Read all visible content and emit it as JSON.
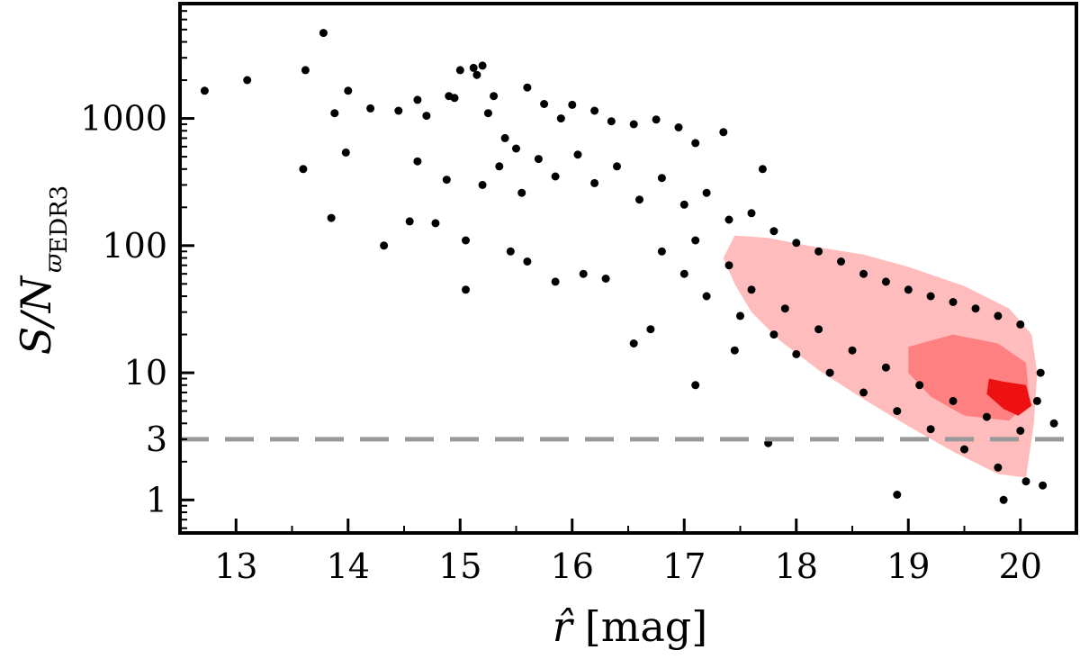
{
  "chart_data": {
    "type": "scatter",
    "title": "",
    "xlabel": "r̂ [mag]",
    "xlabel_parts": {
      "symbol": "r̂",
      "unit": "[mag]"
    },
    "ylabel": "S/N ϖ EDR3",
    "ylabel_parts": {
      "main": "S/N",
      "subscript_symbol": "ϖ",
      "subscript_text": "EDR3"
    },
    "xlim": [
      12.5,
      20.5
    ],
    "ylim": [
      0.55,
      8000
    ],
    "yscale": "log",
    "grid": false,
    "x_ticks": [
      "13",
      "14",
      "15",
      "16",
      "17",
      "18",
      "19",
      "20"
    ],
    "y_ticks": [
      "1",
      "3",
      "10",
      "100",
      "1000"
    ],
    "y_tick_values": [
      1,
      3,
      10,
      100,
      1000
    ],
    "reference_line": {
      "y": 3,
      "style": "dashed",
      "color": "#999999"
    },
    "colors": {
      "points": "#000000",
      "density_low": "#ffbcbc",
      "density_mid": "#ff8080",
      "density_high": "#ee1111",
      "dashed_line": "#999999"
    },
    "series": [
      {
        "points": [
          [
            12.72,
            1650
          ],
          [
            13.1,
            2000
          ],
          [
            13.78,
            4700
          ],
          [
            13.62,
            2400
          ],
          [
            13.88,
            1100
          ],
          [
            14.0,
            1650
          ],
          [
            14.2,
            1200
          ],
          [
            14.45,
            1150
          ],
          [
            14.62,
            1400
          ],
          [
            14.7,
            1050
          ],
          [
            14.9,
            1500
          ],
          [
            14.95,
            1450
          ],
          [
            13.6,
            400
          ],
          [
            13.98,
            540
          ],
          [
            14.62,
            460
          ],
          [
            14.88,
            330
          ],
          [
            13.85,
            165
          ],
          [
            14.32,
            100
          ],
          [
            14.55,
            155
          ],
          [
            14.78,
            150
          ],
          [
            15.05,
            110
          ],
          [
            15.05,
            45
          ],
          [
            15.0,
            2400
          ],
          [
            15.12,
            2500
          ],
          [
            15.15,
            2200
          ],
          [
            15.2,
            2600
          ],
          [
            15.3,
            1500
          ],
          [
            15.25,
            1100
          ],
          [
            15.4,
            700
          ],
          [
            15.5,
            580
          ],
          [
            15.6,
            1750
          ],
          [
            15.75,
            1300
          ],
          [
            15.9,
            1000
          ],
          [
            16.0,
            1280
          ],
          [
            16.2,
            1150
          ],
          [
            16.35,
            950
          ],
          [
            16.55,
            900
          ],
          [
            16.75,
            980
          ],
          [
            16.95,
            850
          ],
          [
            17.1,
            640
          ],
          [
            17.35,
            780
          ],
          [
            17.7,
            400
          ],
          [
            15.45,
            90
          ],
          [
            15.6,
            75
          ],
          [
            15.85,
            52
          ],
          [
            16.1,
            60
          ],
          [
            16.3,
            55
          ],
          [
            16.55,
            17
          ],
          [
            16.7,
            22
          ],
          [
            17.1,
            8
          ],
          [
            17.45,
            15
          ],
          [
            17.75,
            2.8
          ],
          [
            18.9,
            1.1
          ],
          [
            19.85,
            1.0
          ],
          [
            20.2,
            1.3
          ],
          [
            20.3,
            4.0
          ],
          [
            15.2,
            300
          ],
          [
            15.35,
            420
          ],
          [
            15.55,
            260
          ],
          [
            15.7,
            480
          ],
          [
            15.85,
            350
          ],
          [
            16.05,
            520
          ],
          [
            16.2,
            310
          ],
          [
            16.4,
            420
          ],
          [
            16.6,
            230
          ],
          [
            16.8,
            340
          ],
          [
            17.0,
            210
          ],
          [
            17.2,
            260
          ],
          [
            17.4,
            160
          ],
          [
            17.6,
            180
          ],
          [
            17.8,
            130
          ],
          [
            18.0,
            105
          ],
          [
            18.2,
            90
          ],
          [
            18.4,
            75
          ],
          [
            18.6,
            60
          ],
          [
            18.8,
            52
          ],
          [
            19.0,
            45
          ],
          [
            19.2,
            40
          ],
          [
            19.4,
            36
          ],
          [
            19.6,
            32
          ],
          [
            19.8,
            28
          ],
          [
            20.0,
            24
          ],
          [
            17.0,
            60
          ],
          [
            17.2,
            40
          ],
          [
            17.5,
            28
          ],
          [
            17.8,
            20
          ],
          [
            18.0,
            14
          ],
          [
            18.3,
            10
          ],
          [
            18.6,
            7
          ],
          [
            18.9,
            5
          ],
          [
            19.2,
            3.6
          ],
          [
            19.5,
            2.5
          ],
          [
            19.8,
            1.8
          ],
          [
            20.05,
            1.4
          ],
          [
            16.8,
            90
          ],
          [
            17.1,
            110
          ],
          [
            17.4,
            70
          ],
          [
            17.6,
            45
          ],
          [
            17.9,
            32
          ],
          [
            18.2,
            22
          ],
          [
            18.5,
            15
          ],
          [
            18.8,
            11
          ],
          [
            19.1,
            8
          ],
          [
            19.4,
            6
          ],
          [
            19.7,
            4.5
          ],
          [
            20.0,
            3.5
          ],
          [
            20.15,
            6
          ],
          [
            20.18,
            10
          ]
        ]
      }
    ]
  }
}
